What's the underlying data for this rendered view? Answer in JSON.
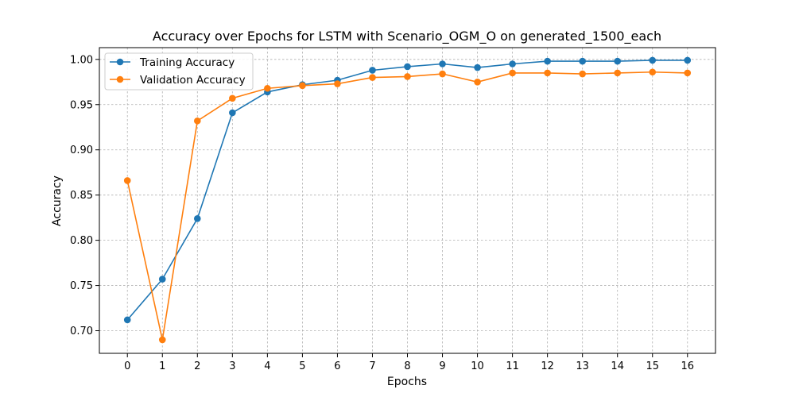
{
  "chart_data": {
    "type": "line",
    "title": "Accuracy over Epochs for LSTM with Scenario_OGM_O on generated_1500_each",
    "xlabel": "Epochs",
    "ylabel": "Accuracy",
    "x": [
      0,
      1,
      2,
      3,
      4,
      5,
      6,
      7,
      8,
      9,
      10,
      11,
      12,
      13,
      14,
      15,
      16
    ],
    "xlim": [
      -0.8,
      16.8
    ],
    "ylim": [
      0.675,
      1.013
    ],
    "yticks": [
      "0.70",
      "0.75",
      "0.80",
      "0.85",
      "0.90",
      "0.95",
      "1.00"
    ],
    "grid": true,
    "legend_position": "top-left",
    "series": [
      {
        "name": "Training Accuracy",
        "color": "#1f77b4",
        "values": [
          0.712,
          0.757,
          0.824,
          0.941,
          0.964,
          0.972,
          0.977,
          0.988,
          0.992,
          0.995,
          0.991,
          0.995,
          0.998,
          0.998,
          0.998,
          0.999,
          0.999
        ]
      },
      {
        "name": "Validation Accuracy",
        "color": "#ff7f0e",
        "values": [
          0.866,
          0.69,
          0.932,
          0.957,
          0.968,
          0.971,
          0.973,
          0.98,
          0.981,
          0.984,
          0.975,
          0.985,
          0.985,
          0.984,
          0.985,
          0.986,
          0.985
        ]
      }
    ]
  }
}
